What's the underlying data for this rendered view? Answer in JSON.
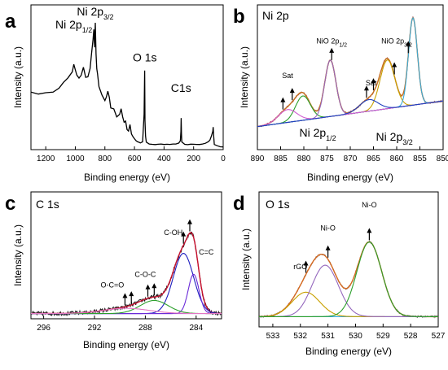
{
  "chart_data": [
    {
      "panel": "a",
      "type": "line",
      "title": "",
      "xlabel": "Binding energy (eV)",
      "ylabel": "Intensity (a.u.)",
      "xlim": [
        1300,
        0
      ],
      "xticks": [
        1200,
        1000,
        800,
        600,
        400,
        200,
        0
      ],
      "x_reversed": true,
      "y_ticks_shown": false,
      "annotations": [
        {
          "text": "Ni 2p",
          "sub": "1/2",
          "x": 1010,
          "y": 0.9
        },
        {
          "text": "Ni 2p",
          "sub": "3/2",
          "x": 865,
          "y": 1.0
        },
        {
          "text": "O 1s",
          "x": 530,
          "y": 0.65
        },
        {
          "text": "C1s",
          "x": 285,
          "y": 0.42
        }
      ],
      "series": [
        {
          "color": "#000000",
          "x": [
            1300,
            1250,
            1200,
            1150,
            1110,
            1080,
            1050,
            1020,
            1010,
            1000,
            990,
            975,
            960,
            945,
            930,
            915,
            900,
            890,
            880,
            875,
            870,
            865,
            860,
            855,
            850,
            840,
            820,
            800,
            790,
            780,
            770,
            760,
            740,
            720,
            700,
            690,
            680,
            670,
            660,
            650,
            640,
            630,
            620,
            610,
            600,
            590,
            580,
            570,
            560,
            545,
            535,
            531,
            529,
            525,
            520,
            510,
            500,
            480,
            460,
            440,
            420,
            400,
            380,
            360,
            340,
            320,
            300,
            290,
            286,
            284,
            282,
            280,
            260,
            240,
            220,
            200,
            180,
            160,
            140,
            120,
            110,
            100,
            90,
            80,
            70,
            68,
            66,
            64,
            60,
            40,
            20,
            0
          ],
          "y": [
            0.42,
            0.4,
            0.41,
            0.42,
            0.45,
            0.5,
            0.52,
            0.57,
            0.62,
            0.58,
            0.55,
            0.53,
            0.55,
            0.6,
            0.52,
            0.54,
            0.6,
            0.72,
            0.82,
            0.9,
            0.75,
            0.95,
            0.7,
            0.6,
            0.55,
            0.45,
            0.4,
            0.35,
            0.38,
            0.43,
            0.37,
            0.3,
            0.28,
            0.22,
            0.24,
            0.3,
            0.22,
            0.18,
            0.2,
            0.14,
            0.12,
            0.17,
            0.1,
            0.08,
            0.06,
            0.05,
            0.04,
            0.035,
            0.03,
            0.04,
            0.25,
            0.58,
            0.2,
            0.08,
            0.04,
            0.03,
            0.025,
            0.02,
            0.02,
            0.02,
            0.02,
            0.02,
            0.02,
            0.02,
            0.025,
            0.025,
            0.03,
            0.05,
            0.12,
            0.22,
            0.1,
            0.04,
            0.02,
            0.02,
            0.02,
            0.02,
            0.02,
            0.02,
            0.02,
            0.03,
            0.035,
            0.04,
            0.05,
            0.08,
            0.12,
            0.15,
            0.12,
            0.08,
            0.02,
            0.01,
            0.0,
            0.0
          ]
        }
      ]
    },
    {
      "panel": "b",
      "type": "line",
      "title": "Ni 2p",
      "xlabel": "Binding energy (eV)",
      "ylabel": "Intensity (a.u.)",
      "xlim": [
        890,
        850
      ],
      "xticks": [
        890,
        885,
        880,
        875,
        870,
        865,
        860,
        855,
        850
      ],
      "x_reversed": true,
      "y_ticks_shown": false,
      "annotations": [
        {
          "text": "Sat",
          "x": 883.5,
          "y": 0.48
        },
        {
          "text": "NiO 2p",
          "sub": "1/2",
          "x": 874,
          "y": 0.75
        },
        {
          "text": "Sat",
          "x": 865.5,
          "y": 0.42
        },
        {
          "text": "NiO 2p",
          "sub": "3/2",
          "x": 860,
          "y": 0.75
        },
        {
          "text": "Ni 2p",
          "sub": "1/2",
          "x": 877,
          "y": 0.02,
          "big": true
        },
        {
          "text": "Ni 2p",
          "sub": "3/2",
          "x": 860.5,
          "y": -0.01,
          "big": true
        }
      ],
      "arrows": [
        884.5,
        882.5,
        874,
        866.5,
        865,
        860.5,
        857.5
      ],
      "series": [
        {
          "kind": "raw",
          "color": "#8a3a3a",
          "base": [
            0.1,
            0.3
          ],
          "peaks": [
            [
              883.5,
              0.1,
              2.0
            ],
            [
              880.2,
              0.19,
              1.6
            ],
            [
              874.3,
              0.44,
              1.2
            ],
            [
              866.0,
              0.09,
              2.0
            ],
            [
              862.0,
              0.38,
              1.6
            ],
            [
              856.5,
              0.68,
              0.95
            ]
          ]
        },
        {
          "kind": "envelope",
          "color": "#c87020",
          "base": [
            0.1,
            0.3
          ],
          "peaks": [
            [
              883.5,
              0.1,
              2.0
            ],
            [
              880.2,
              0.19,
              1.6
            ],
            [
              874.3,
              0.44,
              1.2
            ],
            [
              866.0,
              0.09,
              2.0
            ],
            [
              862.0,
              0.38,
              1.6
            ],
            [
              856.5,
              0.68,
              0.95
            ]
          ]
        },
        {
          "kind": "baseline",
          "color": "#6a5a3a",
          "base": [
            0.1,
            0.3
          ],
          "peaks": []
        },
        {
          "kind": "component",
          "color": "#c8a000",
          "base": [
            0.1,
            0.3
          ],
          "peaks": [
            [
              862.0,
              0.38,
              1.6
            ]
          ]
        },
        {
          "kind": "component",
          "color": "#2ca02c",
          "base": [
            0.1,
            0.3
          ],
          "peaks": [
            [
              880.2,
              0.19,
              1.6
            ]
          ]
        },
        {
          "kind": "component",
          "color": "#9467bd",
          "base": [
            0.1,
            0.3
          ],
          "peaks": [
            [
              874.3,
              0.44,
              1.2
            ]
          ]
        },
        {
          "kind": "component",
          "color": "#3aaad8",
          "base": [
            0.1,
            0.3
          ],
          "peaks": [
            [
              856.5,
              0.68,
              0.95
            ]
          ]
        },
        {
          "kind": "component",
          "color": "#d15bd0",
          "base": [
            0.1,
            0.3
          ],
          "peaks": [
            [
              883.5,
              0.1,
              2.0
            ]
          ]
        },
        {
          "kind": "component",
          "color": "#1f3fbf",
          "base": [
            0.1,
            0.3
          ],
          "peaks": [
            [
              866.0,
              0.09,
              2.0
            ]
          ]
        }
      ]
    },
    {
      "panel": "c",
      "type": "line",
      "title": "C 1s",
      "xlabel": "Binding energy (eV)",
      "ylabel": "Intensity (a.u.)",
      "xlim": [
        297,
        282
      ],
      "xticks": [
        296,
        292,
        288,
        284
      ],
      "x_reversed": true,
      "y_ticks_shown": false,
      "annotations": [
        {
          "text": "C-OH",
          "x": 285.8,
          "y": 0.62
        },
        {
          "text": "C=C",
          "x": 283.2,
          "y": 0.47
        },
        {
          "text": "C-O-C",
          "x": 288.0,
          "y": 0.3
        },
        {
          "text": "O-C=O",
          "x": 290.6,
          "y": 0.22
        }
      ],
      "arrows": [
        285.0,
        284.5,
        287.8,
        287.3,
        289.6,
        289.1
      ],
      "series": [
        {
          "kind": "raw",
          "color": "#1a1a1a",
          "base": [
            0.02,
            0.02
          ],
          "peaks": [
            [
              289.5,
              0.04,
              1.8
            ],
            [
              287.3,
              0.1,
              1.1
            ],
            [
              285.0,
              0.46,
              0.8
            ],
            [
              284.2,
              0.3,
              0.42
            ]
          ]
        },
        {
          "kind": "envelope",
          "color": "#c8102e",
          "base": [
            0.02,
            0.02
          ],
          "peaks": [
            [
              289.5,
              0.04,
              1.8
            ],
            [
              287.3,
              0.1,
              1.1
            ],
            [
              285.0,
              0.46,
              0.8
            ],
            [
              284.2,
              0.3,
              0.42
            ]
          ]
        },
        {
          "kind": "baseline",
          "color": "#9b30d9",
          "base": [
            0.02,
            0.02
          ],
          "peaks": []
        },
        {
          "kind": "component",
          "color": "#1f1fbf",
          "base": [
            0.02,
            0.02
          ],
          "peaks": [
            [
              285.0,
              0.46,
              0.8
            ]
          ]
        },
        {
          "kind": "component",
          "color": "#6a2ad8",
          "base": [
            0.02,
            0.02
          ],
          "peaks": [
            [
              284.2,
              0.3,
              0.42
            ]
          ]
        },
        {
          "kind": "component",
          "color": "#2ca02c",
          "base": [
            0.02,
            0.02
          ],
          "peaks": [
            [
              287.3,
              0.1,
              1.1
            ]
          ]
        },
        {
          "kind": "component",
          "color": "#e377c2",
          "base": [
            0.02,
            0.02
          ],
          "peaks": [
            [
              289.5,
              0.04,
              1.8
            ]
          ]
        }
      ]
    },
    {
      "panel": "d",
      "type": "line",
      "title": "O 1s",
      "xlabel": "Binding energy (eV)",
      "ylabel": "Intensity (a.u.)",
      "xlim": [
        533.5,
        527
      ],
      "xticks": [
        533,
        532,
        531,
        530,
        529,
        528,
        527
      ],
      "x_reversed": true,
      "y_ticks_shown": false,
      "annotations": [
        {
          "text": "rGO",
          "x": 532.0,
          "y": 0.45
        },
        {
          "text": "Ni-O",
          "x": 531.0,
          "y": 0.75
        },
        {
          "text": "Ni-O",
          "x": 529.5,
          "y": 0.93
        }
      ],
      "arrows": [
        531.8,
        531.0,
        529.5
      ],
      "series": [
        {
          "kind": "raw",
          "color": "#5a5a5a",
          "base": [
            0.08,
            0.08
          ],
          "peaks": [
            [
              531.8,
              0.19,
              0.5
            ],
            [
              531.1,
              0.4,
              0.48
            ],
            [
              529.5,
              0.58,
              0.45
            ]
          ]
        },
        {
          "kind": "envelope",
          "color": "#d86a20",
          "base": [
            0.08,
            0.08
          ],
          "peaks": [
            [
              531.8,
              0.19,
              0.5
            ],
            [
              531.1,
              0.4,
              0.48
            ],
            [
              529.5,
              0.58,
              0.45
            ]
          ]
        },
        {
          "kind": "baseline",
          "color": "#3aaad8",
          "base": [
            0.08,
            0.08
          ],
          "peaks": []
        },
        {
          "kind": "component",
          "color": "#c8a000",
          "base": [
            0.08,
            0.08
          ],
          "peaks": [
            [
              531.8,
              0.19,
              0.5
            ]
          ]
        },
        {
          "kind": "component",
          "color": "#9467bd",
          "base": [
            0.08,
            0.08
          ],
          "peaks": [
            [
              531.1,
              0.4,
              0.48
            ]
          ]
        },
        {
          "kind": "component",
          "color": "#2ca02c",
          "base": [
            0.08,
            0.08
          ],
          "peaks": [
            [
              529.5,
              0.58,
              0.45
            ]
          ]
        }
      ]
    }
  ],
  "panel_labels": [
    "a",
    "b",
    "c",
    "d"
  ]
}
